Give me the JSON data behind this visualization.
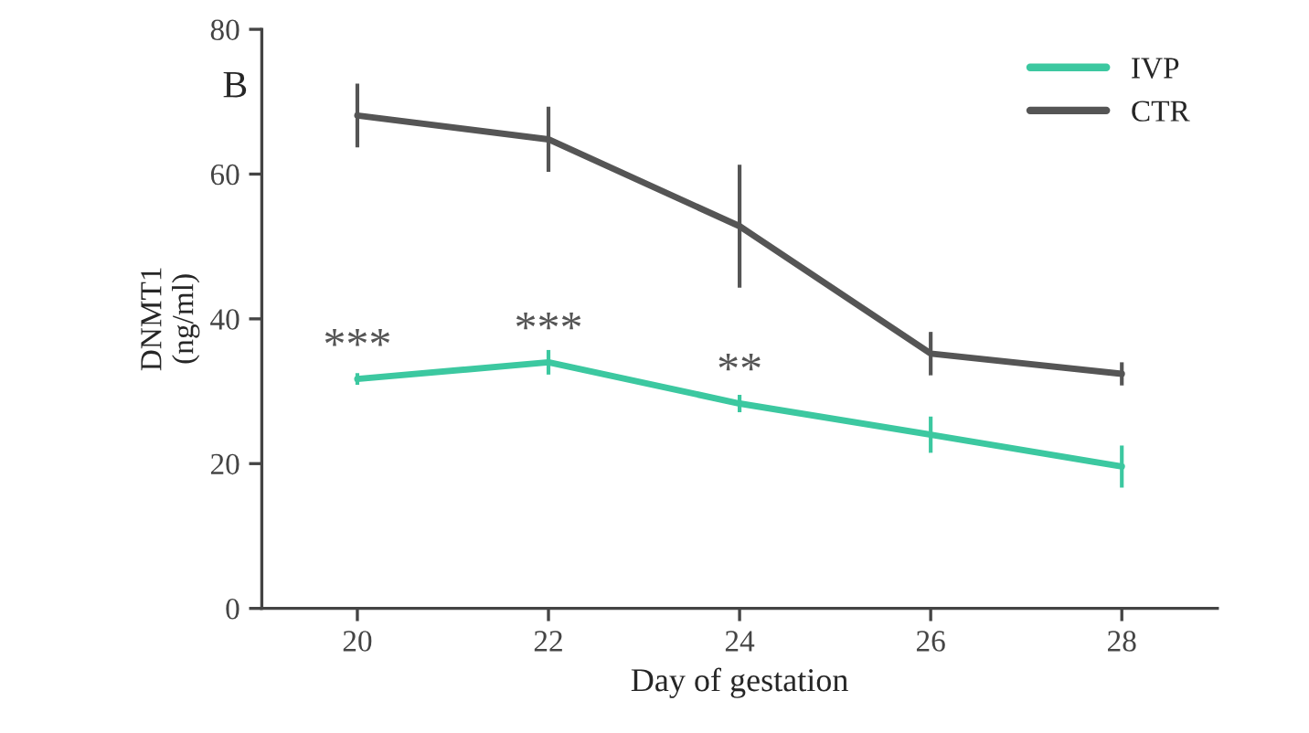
{
  "chart_data": {
    "type": "line",
    "xlabel": "Day of gestation",
    "ylabel": "DNMT1\n(ng/ml)",
    "x": [
      20,
      22,
      24,
      26,
      28
    ],
    "series": [
      {
        "name": "IVP",
        "color": "#3cc8a0",
        "values": [
          31.7,
          34.0,
          28.3,
          24.0,
          19.6
        ],
        "errors": [
          0.8,
          1.7,
          1.2,
          2.5,
          2.9
        ]
      },
      {
        "name": "CTR",
        "color": "#555555",
        "values": [
          68.1,
          64.8,
          52.8,
          35.2,
          32.4
        ],
        "errors": [
          4.4,
          4.5,
          8.5,
          3.0,
          1.6
        ]
      }
    ],
    "xlim": [
      19,
      29
    ],
    "xticks": [
      20,
      22,
      24,
      26,
      28
    ],
    "ylim": [
      0,
      80
    ],
    "yticks": [
      0,
      20,
      40,
      60,
      80
    ],
    "annotations": [
      "B",
      {
        "text": "***",
        "x": 20,
        "y": 31.7
      },
      {
        "text": "***",
        "x": 22,
        "y": 34.0
      },
      {
        "text": "**",
        "x": 24,
        "y": 28.3
      }
    ],
    "grid": false,
    "legend": "top right",
    "marker": "none",
    "line_style": "solid"
  }
}
